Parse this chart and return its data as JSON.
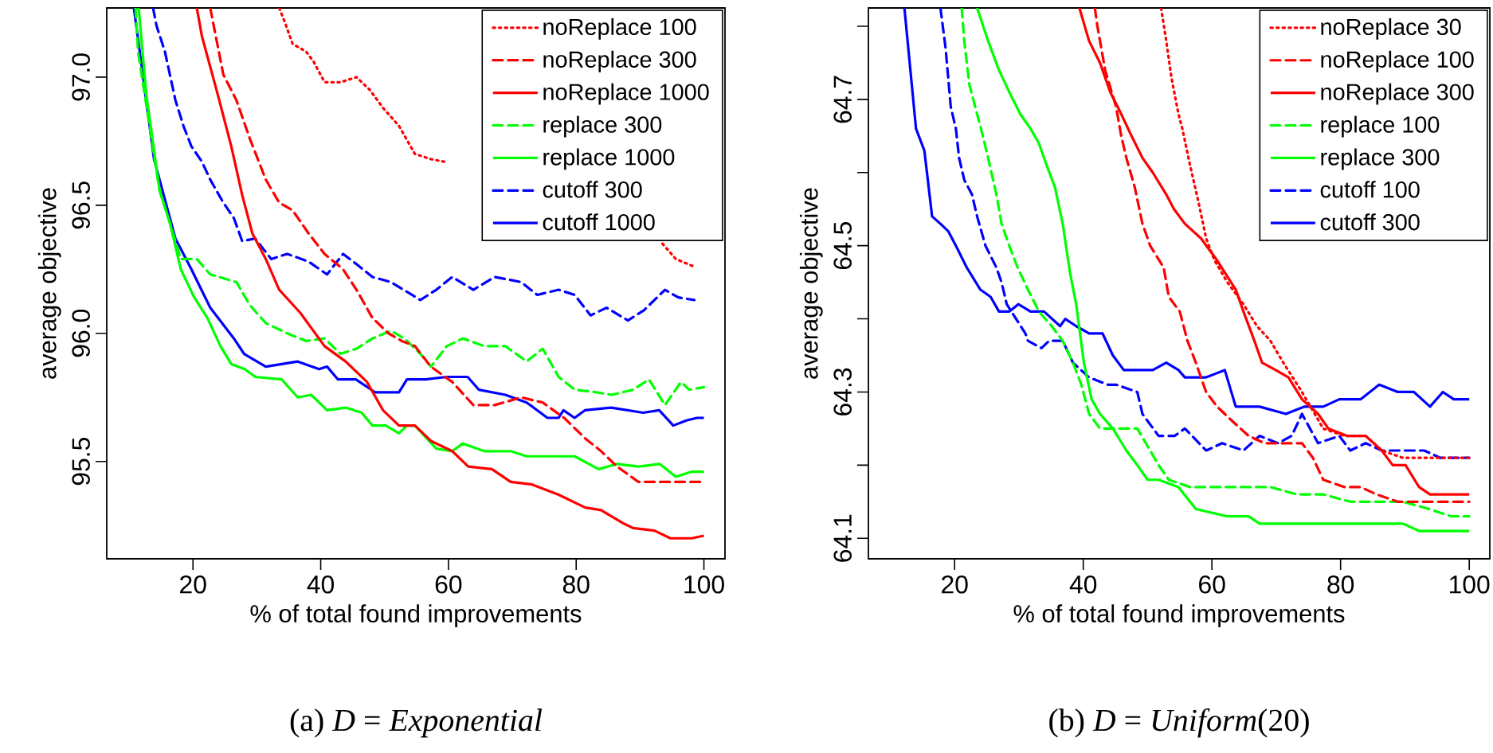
{
  "chart_data": [
    {
      "type": "line",
      "xlabel": "% of total found improvements",
      "ylabel": "average objective",
      "legend": "top right",
      "xlim": [
        6.5,
        103.3
      ],
      "ylim": [
        95.12,
        97.27
      ],
      "xticks": [
        20,
        40,
        60,
        80,
        100
      ],
      "yticks": [
        95.5,
        {
          "value": 96,
          "label": "96.0"
        },
        96.5,
        {
          "value": 97,
          "label": "97.0"
        }
      ],
      "annotations": [
        "(a) *D* = *Exponential*"
      ],
      "series": [
        {
          "name": "noReplace 100",
          "color": "#ff0000",
          "line_style": "dotted",
          "x": [
            33.5,
            34.3,
            35.6,
            37.7,
            38.9,
            40.6,
            43.1,
            45.6,
            47.7,
            49.75,
            52.25,
            54.75,
            57.25,
            59.3,
            80,
            93.5,
            95.6,
            98.5
          ],
          "values": [
            97.27,
            97.22,
            97.13,
            97.1,
            97.06,
            96.98,
            96.98,
            97.0,
            96.95,
            96.88,
            96.81,
            96.7,
            96.68,
            96.67,
            null,
            96.35,
            96.29,
            96.26
          ]
        },
        {
          "name": "noReplace 300",
          "color": "#ff0000",
          "line_style": "dashed",
          "x": [
            22.7,
            24.75,
            26.8,
            28.9,
            31.4,
            33.5,
            35.6,
            38.1,
            40.6,
            43.5,
            45.6,
            48.1,
            50.6,
            52.7,
            54.75,
            57.25,
            60.6,
            63.9,
            67.25,
            71.4,
            74.75,
            78.1,
            81.4,
            83.9,
            86.4,
            89.75,
            93.9,
            97.25,
            100
          ],
          "values": [
            97.27,
            97.01,
            96.91,
            96.76,
            96.6,
            96.51,
            96.48,
            96.39,
            96.31,
            96.25,
            96.17,
            96.06,
            96.0,
            95.97,
            95.95,
            95.87,
            95.81,
            95.72,
            95.72,
            95.75,
            95.73,
            95.67,
            95.59,
            95.54,
            95.48,
            95.42,
            95.42,
            95.42,
            95.42
          ]
        },
        {
          "name": "noReplace 1000",
          "color": "#ff0000",
          "line_style": "solid",
          "x": [
            20.6,
            21.4,
            23.9,
            26,
            27.7,
            29.3,
            31.4,
            33.5,
            36.8,
            40.6,
            43.9,
            47.25,
            49.75,
            52.25,
            54.75,
            57.25,
            60.6,
            63.1,
            66.8,
            69.75,
            73.1,
            77.25,
            81.4,
            83.9,
            87.25,
            88.9,
            92.25,
            94.75,
            98.1,
            100
          ],
          "values": [
            97.27,
            97.16,
            96.93,
            96.73,
            96.54,
            96.39,
            96.29,
            96.17,
            96.08,
            95.95,
            95.89,
            95.81,
            95.7,
            95.64,
            95.64,
            95.58,
            95.54,
            95.48,
            95.47,
            95.42,
            95.41,
            95.37,
            95.32,
            95.31,
            95.26,
            95.24,
            95.23,
            95.2,
            95.2,
            95.21
          ]
        },
        {
          "name": "replace 300",
          "color": "#00ff00",
          "line_style": "dashed",
          "x": [
            11.0,
            11.4,
            12.7,
            13.5,
            14.75,
            16.4,
            18.1,
            20.6,
            22.7,
            26.8,
            28.9,
            31.4,
            34.75,
            37.7,
            40.6,
            43.1,
            45.6,
            48.1,
            51,
            53.1,
            55.6,
            57.25,
            59.75,
            62.25,
            65.6,
            68.9,
            72.25,
            74.75,
            77.25,
            79.75,
            83.1,
            85.6,
            88.9,
            91.4,
            93.9,
            96.4,
            97.7,
            100
          ],
          "values": [
            97.27,
            97.1,
            96.89,
            96.76,
            96.56,
            96.43,
            96.29,
            96.29,
            96.23,
            96.2,
            96.11,
            96.04,
            96.0,
            95.97,
            95.98,
            95.92,
            95.94,
            95.98,
            96.01,
            95.98,
            95.92,
            95.87,
            95.95,
            95.98,
            95.95,
            95.95,
            95.89,
            95.94,
            95.83,
            95.78,
            95.77,
            95.76,
            95.78,
            95.82,
            95.72,
            95.81,
            95.78,
            95.79
          ]
        },
        {
          "name": "replace 1000",
          "color": "#00ff00",
          "line_style": "solid",
          "x": [
            11.5,
            12.7,
            14.75,
            16.4,
            18.1,
            20.2,
            22.25,
            24.3,
            26,
            28.1,
            29.75,
            33.9,
            36.4,
            38.5,
            41,
            43.9,
            46.4,
            48.1,
            50.2,
            52.25,
            53.5,
            54.75,
            58.1,
            60.6,
            62.25,
            65.6,
            69.75,
            72.25,
            77.25,
            79.75,
            83.5,
            86.4,
            89.75,
            93.1,
            95.6,
            98.1,
            100
          ],
          "values": [
            97.27,
            96.93,
            96.56,
            96.43,
            96.25,
            96.14,
            96.06,
            95.95,
            95.88,
            95.86,
            95.83,
            95.82,
            95.75,
            95.76,
            95.7,
            95.71,
            95.69,
            95.64,
            95.64,
            95.61,
            95.64,
            95.64,
            95.55,
            95.54,
            95.57,
            95.54,
            95.54,
            95.52,
            95.52,
            95.52,
            95.47,
            95.49,
            95.48,
            95.49,
            95.44,
            95.46,
            95.46
          ]
        },
        {
          "name": "cutoff 300",
          "color": "#0000ff",
          "line_style": "dashed",
          "x": [
            13.75,
            14.3,
            15.6,
            17.25,
            18.5,
            19.75,
            21.4,
            22.7,
            24.75,
            26.4,
            27.7,
            29.75,
            32.25,
            34.75,
            38.1,
            41,
            43.5,
            45.6,
            48.1,
            51,
            55.6,
            58.1,
            60.6,
            63.9,
            67.25,
            71.4,
            73.9,
            77.25,
            79.75,
            82.25,
            84.75,
            88.1,
            90.6,
            93.9,
            96,
            98.5
          ],
          "values": [
            97.27,
            97.2,
            97.1,
            96.91,
            96.81,
            96.73,
            96.67,
            96.6,
            96.51,
            96.45,
            96.36,
            96.37,
            96.29,
            96.31,
            96.28,
            96.23,
            96.31,
            96.27,
            96.22,
            96.2,
            96.13,
            96.17,
            96.22,
            96.17,
            96.22,
            96.2,
            96.15,
            96.17,
            96.15,
            96.07,
            96.1,
            96.05,
            96.09,
            96.17,
            96.14,
            96.13
          ]
        },
        {
          "name": "cutoff 1000",
          "color": "#0000ff",
          "line_style": "solid",
          "x": [
            10.75,
            12.25,
            13.9,
            17.25,
            19.75,
            22.7,
            26.4,
            28,
            31.4,
            36.4,
            39.75,
            41,
            42.7,
            45.5,
            48.5,
            52.25,
            53.5,
            56.4,
            59.75,
            63,
            64.75,
            68.9,
            72.25,
            75.5,
            77.25,
            78,
            79.75,
            81.4,
            85.5,
            90.5,
            93,
            95.2,
            97.25,
            98.9,
            100
          ],
          "values": [
            97.27,
            96.99,
            96.68,
            96.37,
            96.25,
            96.1,
            95.98,
            95.92,
            95.87,
            95.89,
            95.86,
            95.87,
            95.82,
            95.82,
            95.77,
            95.77,
            95.82,
            95.82,
            95.83,
            95.83,
            95.78,
            95.76,
            95.73,
            95.67,
            95.67,
            95.7,
            95.67,
            95.7,
            95.71,
            95.69,
            95.7,
            95.64,
            95.66,
            95.67,
            95.67
          ]
        }
      ]
    },
    {
      "type": "line",
      "xlabel": "% of total found improvements",
      "ylabel": "average objective",
      "legend": "top right",
      "xlim": [
        6.6,
        103.2
      ],
      "ylim": [
        64.072,
        64.825
      ],
      "xticks": [
        20,
        40,
        60,
        80,
        100
      ],
      "yticks": [
        64.1,
        {
          "value": 64.2,
          "label": null
        },
        64.3,
        {
          "value": 64.4,
          "label": null
        },
        64.5,
        {
          "value": 64.6,
          "label": null
        },
        64.7,
        {
          "value": 64.8,
          "label": null
        }
      ],
      "annotations": [
        "(b) *D* = *Uniform*(20)"
      ],
      "series": [
        {
          "name": "noReplace 30",
          "color": "#ff0000",
          "line_style": "dotted",
          "x": [
            52.1,
            52.9,
            53.7,
            54.8,
            55.4,
            56.6,
            57.9,
            59.1,
            60.4,
            62.4,
            64.9,
            67,
            69.1,
            71.1,
            74,
            77.3,
            80.6,
            83.9,
            86.4,
            89.7,
            93.8,
            100
          ],
          "values": [
            64.825,
            64.78,
            64.73,
            64.68,
            64.66,
            64.61,
            64.56,
            64.51,
            64.48,
            64.45,
            64.42,
            64.39,
            64.37,
            64.34,
            64.3,
            64.25,
            64.24,
            64.24,
            64.22,
            64.21,
            64.21,
            64.21
          ]
        },
        {
          "name": "noReplace 100",
          "color": "#ff0000",
          "line_style": "dashed",
          "x": [
            41.8,
            42.2,
            43.4,
            45.1,
            45.9,
            46.7,
            48,
            49.2,
            50.4,
            52.5,
            53.3,
            55,
            56.2,
            57.5,
            59.1,
            60.8,
            63.2,
            65.7,
            68.2,
            70.7,
            74,
            75.7,
            77.3,
            80.6,
            83.1,
            85.6,
            88.9,
            92.2,
            95.5,
            100
          ],
          "values": [
            64.825,
            64.8,
            64.74,
            64.69,
            64.65,
            64.62,
            64.58,
            64.53,
            64.5,
            64.47,
            64.43,
            64.41,
            64.37,
            64.34,
            64.3,
            64.28,
            64.26,
            64.24,
            64.23,
            64.23,
            64.23,
            64.21,
            64.18,
            64.17,
            64.17,
            64.16,
            64.15,
            64.15,
            64.15,
            64.15
          ]
        },
        {
          "name": "noReplace 300",
          "color": "#ff0000",
          "line_style": "solid",
          "x": [
            39.4,
            40.9,
            42.6,
            44.2,
            45.9,
            47.5,
            49.2,
            50.8,
            52.9,
            54.1,
            55.8,
            58.3,
            60.8,
            63.7,
            64.9,
            66.6,
            67.8,
            69.9,
            71.9,
            74,
            76.5,
            78.1,
            81,
            83.9,
            86.4,
            88.1,
            90.1,
            92.2,
            93.9,
            100
          ],
          "values": [
            64.825,
            64.78,
            64.75,
            64.71,
            64.68,
            64.65,
            64.62,
            64.6,
            64.57,
            64.55,
            64.53,
            64.51,
            64.48,
            64.44,
            64.41,
            64.37,
            64.34,
            64.33,
            64.32,
            64.29,
            64.27,
            64.25,
            64.24,
            64.24,
            64.22,
            64.2,
            64.2,
            64.17,
            64.16,
            64.16
          ]
        },
        {
          "name": "replace 100",
          "color": "#00ff00",
          "line_style": "dashed",
          "x": [
            21.1,
            21.5,
            22.3,
            23.2,
            24.4,
            25.2,
            26.5,
            27.3,
            28.5,
            29.8,
            31.4,
            33.1,
            35.1,
            36.8,
            38.4,
            39.7,
            40.9,
            42.6,
            46.7,
            48.4,
            50.4,
            51.7,
            53.3,
            56.6,
            60.8,
            65.7,
            69.1,
            73.2,
            77.3,
            81.5,
            85.6,
            89.7,
            93.8,
            97.2,
            100
          ],
          "values": [
            64.825,
            64.78,
            64.72,
            64.69,
            64.65,
            64.62,
            64.57,
            64.53,
            64.5,
            64.47,
            64.44,
            64.41,
            64.39,
            64.37,
            64.34,
            64.31,
            64.27,
            64.25,
            64.25,
            64.25,
            64.22,
            64.2,
            64.18,
            64.17,
            64.17,
            64.17,
            64.17,
            64.16,
            64.16,
            64.15,
            64.15,
            64.15,
            64.14,
            64.13,
            64.13
          ]
        },
        {
          "name": "replace 300",
          "color": "#00ff00",
          "line_style": "solid",
          "x": [
            23.5,
            25.2,
            26.9,
            28.5,
            30.2,
            31.8,
            33.1,
            34.3,
            35.6,
            36.8,
            38,
            38.9,
            40.1,
            41.3,
            42.6,
            44.6,
            46.7,
            48.4,
            50,
            51.7,
            54.8,
            57.5,
            62.4,
            65.7,
            67.4,
            77.3,
            81.5,
            85.6,
            89.7,
            92.2,
            100
          ],
          "values": [
            64.825,
            64.78,
            64.74,
            64.71,
            64.68,
            64.66,
            64.64,
            64.61,
            64.58,
            64.53,
            64.46,
            64.42,
            64.34,
            64.29,
            64.27,
            64.25,
            64.22,
            64.2,
            64.18,
            64.18,
            64.17,
            64.14,
            64.13,
            64.13,
            64.12,
            64.12,
            64.12,
            64.12,
            64.12,
            64.11,
            64.11
          ]
        },
        {
          "name": "cutoff 100",
          "color": "#0000ff",
          "line_style": "dashed",
          "x": [
            17.8,
            18.6,
            19.4,
            20.2,
            20.7,
            21.5,
            22.7,
            23.5,
            24.8,
            26.5,
            27.3,
            28.1,
            31,
            31.4,
            33.5,
            34.7,
            36.8,
            38.4,
            40.9,
            43.8,
            45.1,
            48.4,
            49.2,
            51.7,
            54.2,
            55.8,
            59.1,
            61.6,
            64.9,
            67.4,
            70.3,
            72.4,
            74,
            76.5,
            79.8,
            81.5,
            83.9,
            86.4,
            89.7,
            93,
            95.5,
            100
          ],
          "values": [
            64.825,
            64.77,
            64.69,
            64.66,
            64.62,
            64.59,
            64.57,
            64.54,
            64.5,
            64.47,
            64.45,
            64.42,
            64.38,
            64.37,
            64.36,
            64.37,
            64.37,
            64.34,
            64.32,
            64.31,
            64.31,
            64.3,
            64.27,
            64.24,
            64.24,
            64.25,
            64.22,
            64.23,
            64.22,
            64.24,
            64.23,
            64.24,
            64.27,
            64.23,
            64.24,
            64.22,
            64.23,
            64.22,
            64.22,
            64.22,
            64.21,
            64.21
          ]
        },
        {
          "name": "cutoff 300",
          "color": "#0000ff",
          "line_style": "solid",
          "x": [
            12.2,
            12.8,
            14,
            15.3,
            16.5,
            17.8,
            19,
            20.2,
            21.9,
            24,
            25.6,
            26.9,
            28.5,
            29.9,
            31.8,
            33.9,
            36.4,
            37.2,
            38.9,
            40.9,
            43,
            44.6,
            46.3,
            48.4,
            50.8,
            52.9,
            54.8,
            55.8,
            59.1,
            62,
            63.7,
            67.4,
            71.5,
            74.4,
            77.3,
            79.8,
            83.1,
            86,
            88.9,
            91.4,
            93.9,
            95.9,
            97.6,
            100
          ],
          "values": [
            64.825,
            64.77,
            64.66,
            64.63,
            64.54,
            64.53,
            64.52,
            64.5,
            64.47,
            64.44,
            64.43,
            64.41,
            64.41,
            64.42,
            64.41,
            64.41,
            64.39,
            64.4,
            64.39,
            64.38,
            64.38,
            64.35,
            64.33,
            64.33,
            64.33,
            64.34,
            64.33,
            64.32,
            64.32,
            64.33,
            64.28,
            64.28,
            64.27,
            64.28,
            64.28,
            64.29,
            64.29,
            64.31,
            64.3,
            64.3,
            64.28,
            64.3,
            64.29,
            64.29
          ]
        }
      ]
    }
  ]
}
